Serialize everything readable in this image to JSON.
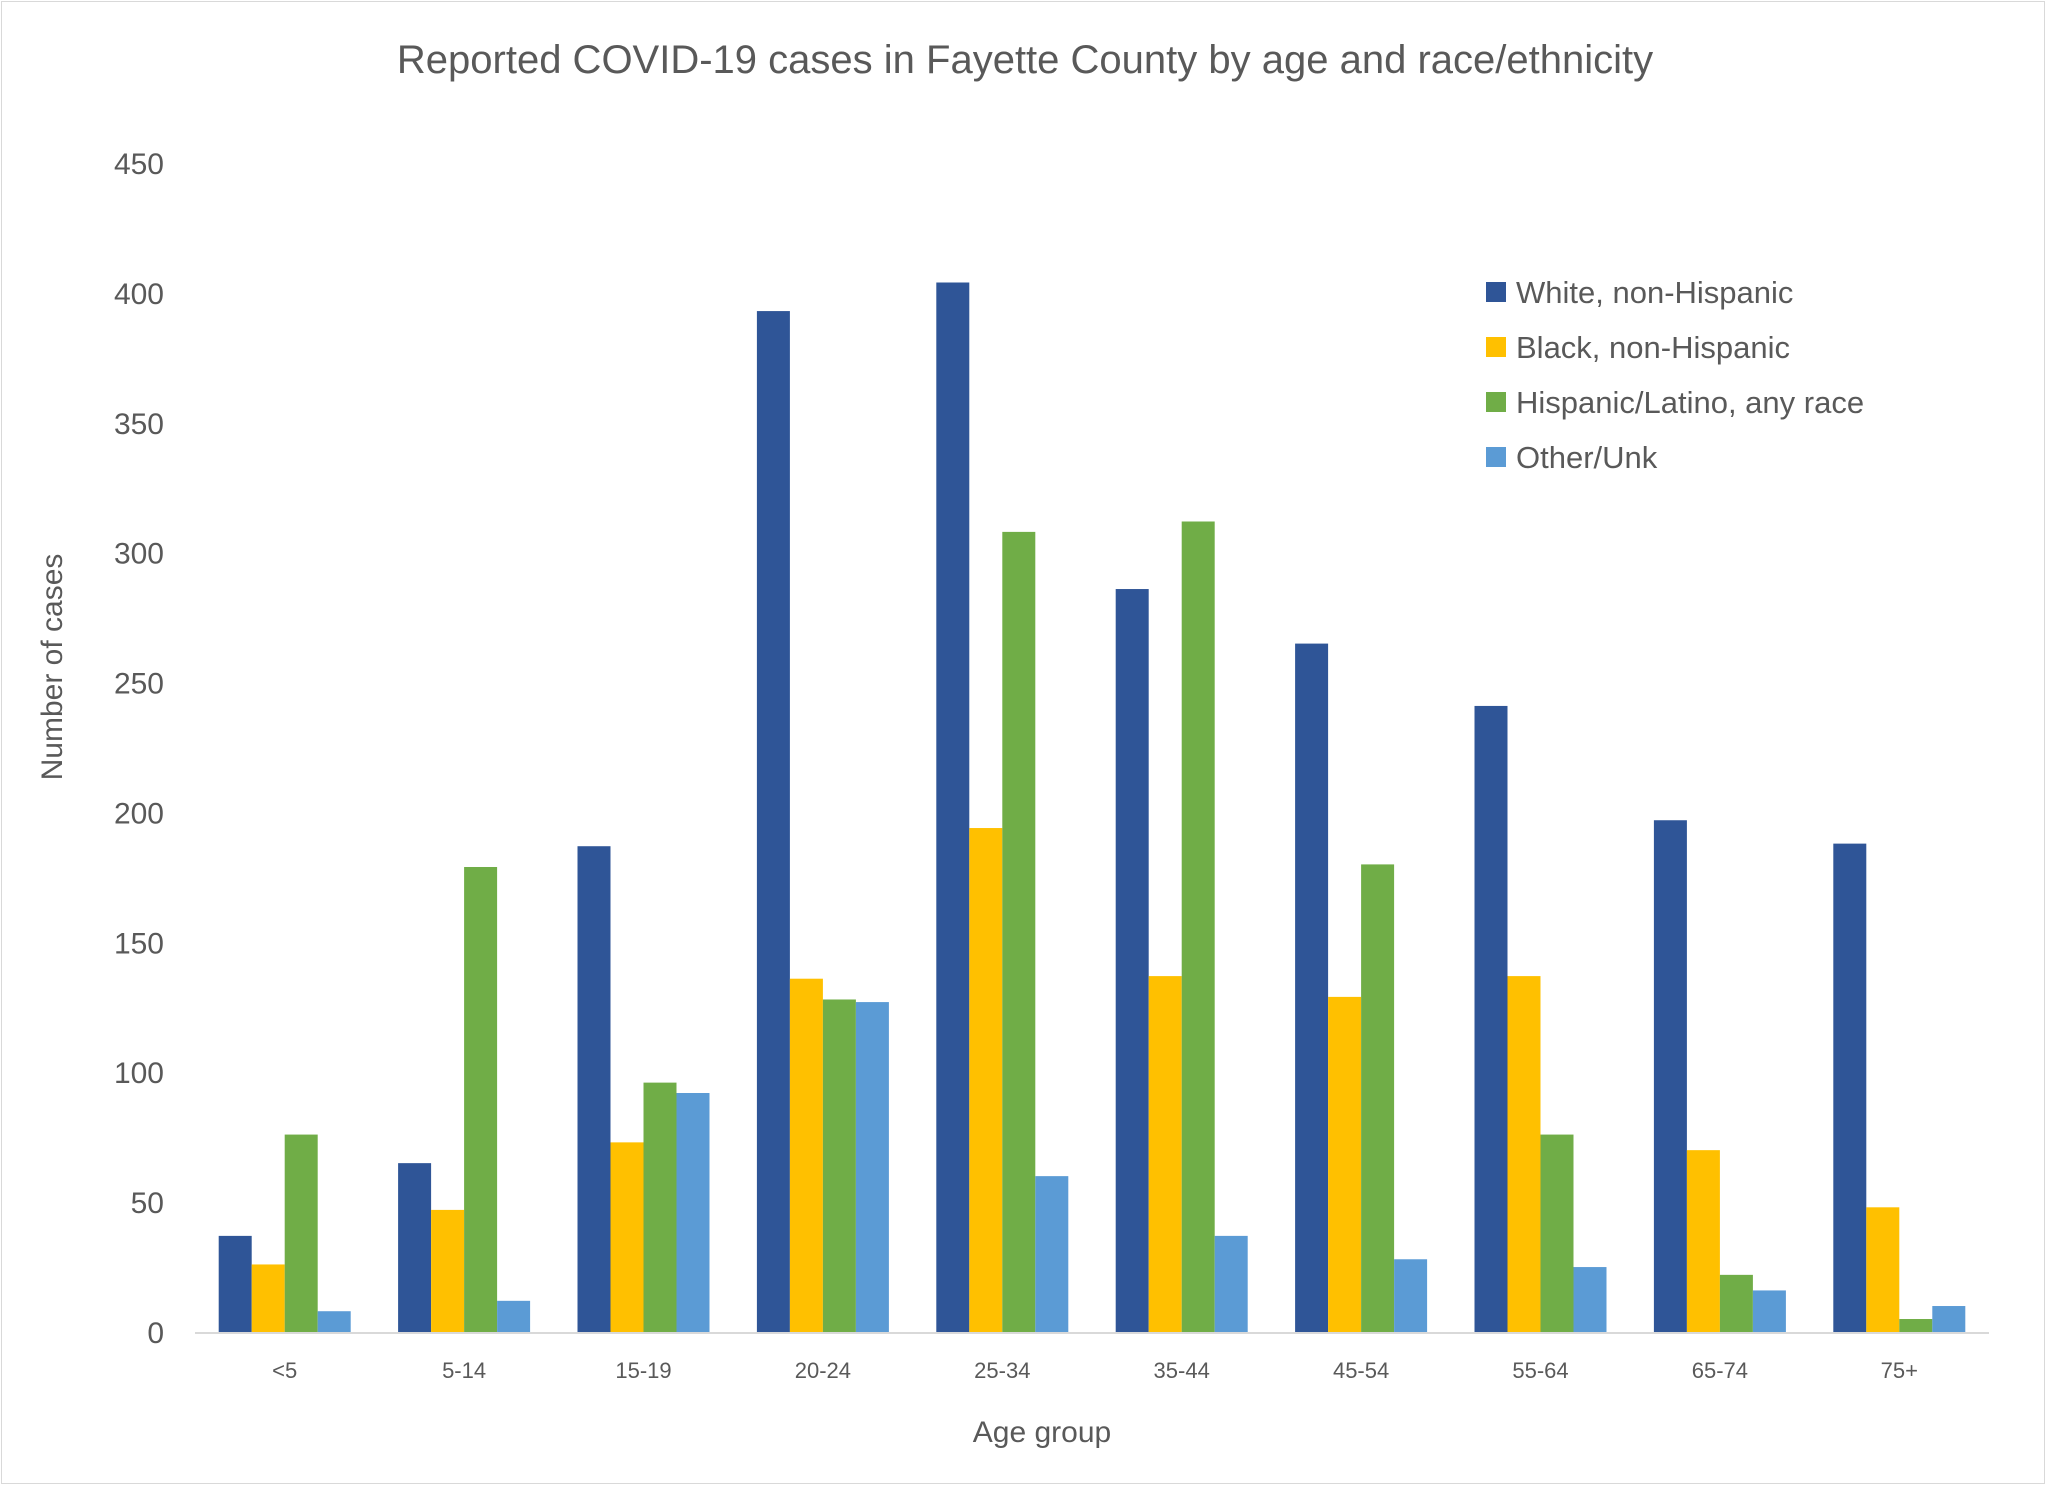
{
  "chart_data": {
    "type": "bar",
    "title": "Reported COVID-19 cases in Fayette County by age and race/ethnicity",
    "xlabel": "Age group",
    "ylabel": "Number of cases",
    "ylim": [
      0,
      450
    ],
    "yticks": [
      0,
      50,
      100,
      150,
      200,
      250,
      300,
      350,
      400,
      450
    ],
    "grid": false,
    "legend_position": "top-right",
    "categories": [
      "<5",
      "5-14",
      "15-19",
      "20-24",
      "25-34",
      "35-44",
      "45-54",
      "55-64",
      "65-74",
      "75+"
    ],
    "series": [
      {
        "name": "White, non-Hispanic",
        "color": "#2f5597",
        "values": [
          37,
          65,
          187,
          393,
          404,
          286,
          265,
          241,
          197,
          188
        ]
      },
      {
        "name": "Black, non-Hispanic",
        "color": "#ffc000",
        "values": [
          26,
          47,
          73,
          136,
          194,
          137,
          129,
          137,
          70,
          48
        ]
      },
      {
        "name": "Hispanic/Latino, any race",
        "color": "#70ad47",
        "values": [
          76,
          179,
          96,
          128,
          308,
          312,
          180,
          76,
          22,
          5
        ]
      },
      {
        "name": "Other/Unk",
        "color": "#5b9bd5",
        "values": [
          8,
          12,
          92,
          127,
          60,
          37,
          28,
          25,
          16,
          10
        ]
      }
    ]
  }
}
